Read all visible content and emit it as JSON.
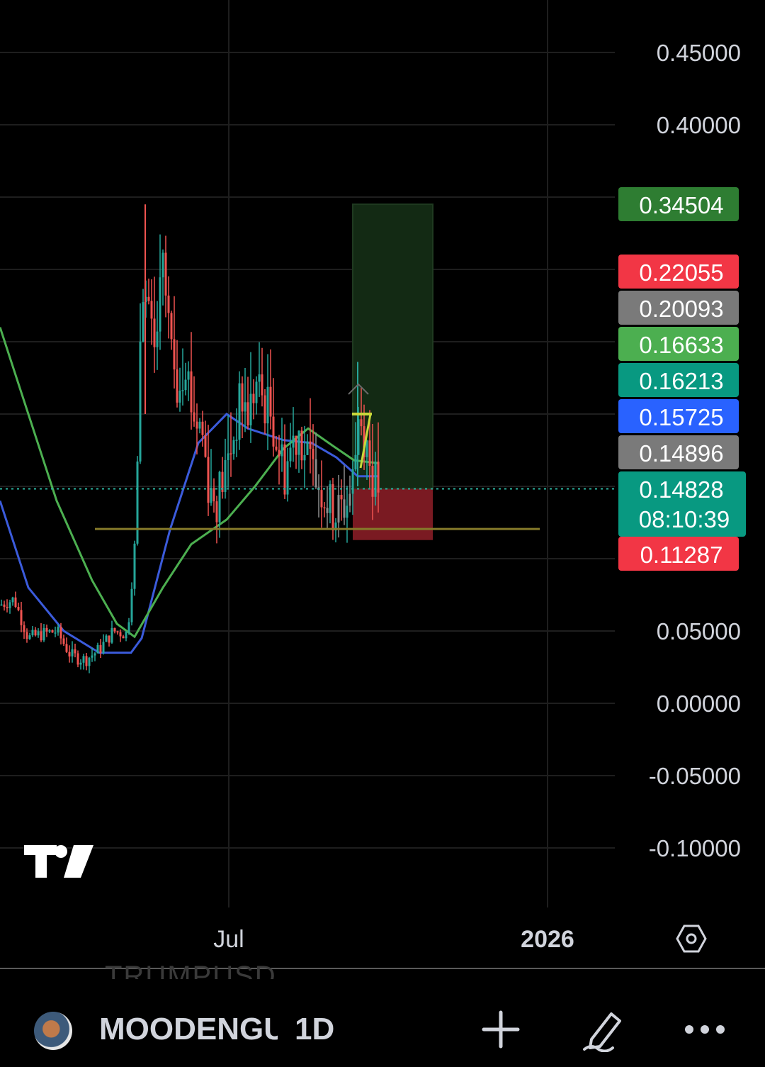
{
  "symbol": {
    "name": "MOODENGUSD",
    "interval": "1D",
    "ghost_symbol": "TRUMPUSD"
  },
  "chart_data": {
    "type": "candlestick",
    "title": "",
    "xlabel": "",
    "ylabel": "",
    "ylim": [
      -0.13,
      0.48
    ],
    "y_ticks": [
      "0.45000",
      "0.40000",
      "0.05000",
      "0.00000",
      "-0.05000",
      "-0.10000"
    ],
    "x_ticks": [
      {
        "label": "Jul",
        "bold": false
      },
      {
        "label": "2026",
        "bold": true
      }
    ],
    "grid": true,
    "colors": {
      "up": "#26a69a",
      "down": "#ef5350",
      "neutral": "#8c8c8c",
      "ma_fast": "#3b5bdb",
      "ma_slow": "#4caf50",
      "support_line": "#857a2a",
      "target_zone": "#132a14",
      "stop_zone": "#7a1a22"
    },
    "price_tags": [
      {
        "value": "0.34504",
        "color": "#2e7d32"
      },
      {
        "value": "0.22055",
        "color": "#f23645"
      },
      {
        "value": "0.20093",
        "color": "#7a7a7a"
      },
      {
        "value": "0.16633",
        "color": "#4caf50"
      },
      {
        "value": "0.16213",
        "color": "#089981"
      },
      {
        "value": "0.15725",
        "color": "#2962ff"
      },
      {
        "value": "0.14896",
        "color": "#7a7a7a"
      },
      {
        "value": "0.14828",
        "countdown": "08:10:39",
        "color": "#089981"
      },
      {
        "value": "0.11287",
        "color": "#f23645"
      }
    ],
    "last_price": 0.14828,
    "support_level": 0.1205,
    "position": {
      "entry": 0.14828,
      "target": 0.34504,
      "stop": 0.11287
    },
    "moving_averages": [
      {
        "color": "#3b5bdb",
        "points": [
          [
            0,
            0.14
          ],
          [
            40,
            0.08
          ],
          [
            90,
            0.05
          ],
          [
            140,
            0.035
          ],
          [
            185,
            0.035
          ],
          [
            200,
            0.045
          ],
          [
            240,
            0.12
          ],
          [
            280,
            0.18
          ],
          [
            320,
            0.2
          ],
          [
            350,
            0.19
          ],
          [
            400,
            0.182
          ],
          [
            440,
            0.18
          ],
          [
            475,
            0.17
          ],
          [
            505,
            0.157
          ],
          [
            535,
            0.157
          ]
        ]
      },
      {
        "color": "#4caf50",
        "points": [
          [
            0,
            0.26
          ],
          [
            40,
            0.2
          ],
          [
            80,
            0.14
          ],
          [
            130,
            0.085
          ],
          [
            165,
            0.055
          ],
          [
            190,
            0.046
          ],
          [
            230,
            0.08
          ],
          [
            270,
            0.11
          ],
          [
            320,
            0.127
          ],
          [
            360,
            0.15
          ],
          [
            400,
            0.176
          ],
          [
            435,
            0.19
          ],
          [
            470,
            0.178
          ],
          [
            500,
            0.168
          ],
          [
            535,
            0.166
          ]
        ]
      }
    ],
    "candles_note": "daily OHLC candles, approximate",
    "candle_path": [
      [
        0,
        0.068
      ],
      [
        20,
        0.072
      ],
      [
        40,
        0.045
      ],
      [
        60,
        0.048
      ],
      [
        80,
        0.05
      ],
      [
        100,
        0.033
      ],
      [
        120,
        0.03
      ],
      [
        140,
        0.037
      ],
      [
        160,
        0.05
      ],
      [
        180,
        0.048
      ],
      [
        192,
        0.12
      ],
      [
        200,
        0.3
      ],
      [
        208,
        0.27
      ],
      [
        218,
        0.24
      ],
      [
        230,
        0.3
      ],
      [
        240,
        0.25
      ],
      [
        250,
        0.22
      ],
      [
        262,
        0.24
      ],
      [
        272,
        0.2
      ],
      [
        285,
        0.19
      ],
      [
        295,
        0.15
      ],
      [
        305,
        0.14
      ],
      [
        318,
        0.16
      ],
      [
        330,
        0.185
      ],
      [
        340,
        0.21
      ],
      [
        350,
        0.2
      ],
      [
        362,
        0.22
      ],
      [
        372,
        0.21
      ],
      [
        382,
        0.2
      ],
      [
        392,
        0.18
      ],
      [
        402,
        0.16
      ],
      [
        412,
        0.18
      ],
      [
        422,
        0.19
      ],
      [
        432,
        0.17
      ],
      [
        442,
        0.16
      ],
      [
        452,
        0.15
      ],
      [
        462,
        0.14
      ],
      [
        472,
        0.13
      ],
      [
        482,
        0.135
      ],
      [
        492,
        0.14
      ],
      [
        500,
        0.16
      ],
      [
        506,
        0.2
      ],
      [
        512,
        0.19
      ],
      [
        518,
        0.18
      ],
      [
        524,
        0.16
      ],
      [
        530,
        0.152
      ],
      [
        537,
        0.148
      ]
    ]
  },
  "bottom_bar": {
    "add_icon": "plus-icon",
    "draw_icon": "pencil-icon",
    "more_icon": "more-dots-icon"
  },
  "watermark": "tradingview-logo"
}
